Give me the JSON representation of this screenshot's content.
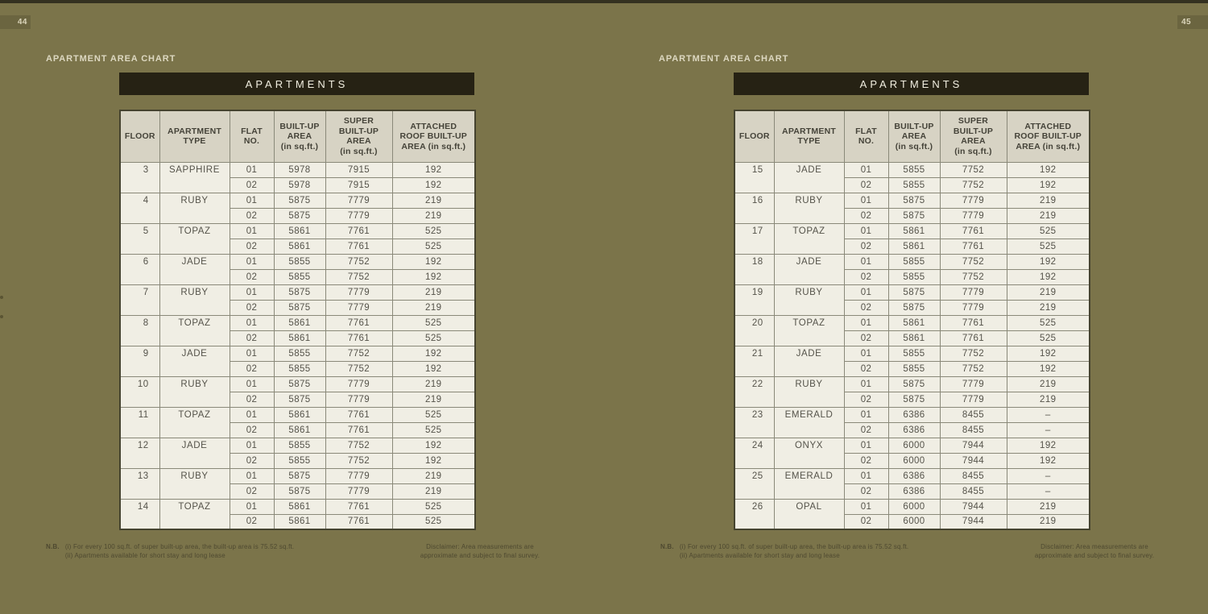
{
  "colors": {
    "page_background": "#7b744a",
    "top_strip": "#343120",
    "band_background": "#262214",
    "band_text": "#f1eee0",
    "header_cell_background": "#d7d3c4",
    "body_cell_background": "#f0eee4",
    "cell_border": "#8a8979",
    "cell_text": "#55534a",
    "badge_background": "#6b6540",
    "light_text": "#ddd8c1",
    "footnote_text": "#4e4930"
  },
  "pages": [
    {
      "page_number": "44",
      "section_label": "APARTMENT AREA CHART",
      "band_title": "APARTMENTS",
      "columns": [
        "FLOOR",
        "APARTMENT\nTYPE",
        "FLAT\nNO.",
        "BUILT-UP\nAREA\n(in sq.ft.)",
        "SUPER\nBUILT-UP\nAREA\n(in sq.ft.)",
        "ATTACHED\nROOF BUILT-UP\nAREA (in sq.ft.)"
      ],
      "floors": [
        {
          "floor": "3",
          "type": "SAPPHIRE",
          "flats": [
            [
              "01",
              "5978",
              "7915",
              "192"
            ],
            [
              "02",
              "5978",
              "7915",
              "192"
            ]
          ]
        },
        {
          "floor": "4",
          "type": "RUBY",
          "flats": [
            [
              "01",
              "5875",
              "7779",
              "219"
            ],
            [
              "02",
              "5875",
              "7779",
              "219"
            ]
          ]
        },
        {
          "floor": "5",
          "type": "TOPAZ",
          "flats": [
            [
              "01",
              "5861",
              "7761",
              "525"
            ],
            [
              "02",
              "5861",
              "7761",
              "525"
            ]
          ]
        },
        {
          "floor": "6",
          "type": "JADE",
          "flats": [
            [
              "01",
              "5855",
              "7752",
              "192"
            ],
            [
              "02",
              "5855",
              "7752",
              "192"
            ]
          ]
        },
        {
          "floor": "7",
          "type": "RUBY",
          "flats": [
            [
              "01",
              "5875",
              "7779",
              "219"
            ],
            [
              "02",
              "5875",
              "7779",
              "219"
            ]
          ]
        },
        {
          "floor": "8",
          "type": "TOPAZ",
          "flats": [
            [
              "01",
              "5861",
              "7761",
              "525"
            ],
            [
              "02",
              "5861",
              "7761",
              "525"
            ]
          ]
        },
        {
          "floor": "9",
          "type": "JADE",
          "flats": [
            [
              "01",
              "5855",
              "7752",
              "192"
            ],
            [
              "02",
              "5855",
              "7752",
              "192"
            ]
          ]
        },
        {
          "floor": "10",
          "type": "RUBY",
          "flats": [
            [
              "01",
              "5875",
              "7779",
              "219"
            ],
            [
              "02",
              "5875",
              "7779",
              "219"
            ]
          ]
        },
        {
          "floor": "11",
          "type": "TOPAZ",
          "flats": [
            [
              "01",
              "5861",
              "7761",
              "525"
            ],
            [
              "02",
              "5861",
              "7761",
              "525"
            ]
          ]
        },
        {
          "floor": "12",
          "type": "JADE",
          "flats": [
            [
              "01",
              "5855",
              "7752",
              "192"
            ],
            [
              "02",
              "5855",
              "7752",
              "192"
            ]
          ]
        },
        {
          "floor": "13",
          "type": "RUBY",
          "flats": [
            [
              "01",
              "5875",
              "7779",
              "219"
            ],
            [
              "02",
              "5875",
              "7779",
              "219"
            ]
          ]
        },
        {
          "floor": "14",
          "type": "TOPAZ",
          "flats": [
            [
              "01",
              "5861",
              "7761",
              "525"
            ],
            [
              "02",
              "5861",
              "7761",
              "525"
            ]
          ]
        }
      ],
      "footnote_label": "N.B.",
      "footnotes": [
        "(i)  For every 100 sq.ft. of super built-up area, the built-up area is 75.52 sq.ft.",
        "(ii) Apartments available for short stay and long lease"
      ],
      "disclaimer": [
        "Disclaimer: Area measurements are",
        "approximate and subject to final survey."
      ]
    },
    {
      "page_number": "45",
      "section_label": "APARTMENT AREA CHART",
      "band_title": "APARTMENTS",
      "columns": [
        "FLOOR",
        "APARTMENT\nTYPE",
        "FLAT\nNO.",
        "BUILT-UP\nAREA\n(in sq.ft.)",
        "SUPER\nBUILT-UP\nAREA\n(in sq.ft.)",
        "ATTACHED\nROOF BUILT-UP\nAREA (in sq.ft.)"
      ],
      "floors": [
        {
          "floor": "15",
          "type": "JADE",
          "flats": [
            [
              "01",
              "5855",
              "7752",
              "192"
            ],
            [
              "02",
              "5855",
              "7752",
              "192"
            ]
          ]
        },
        {
          "floor": "16",
          "type": "RUBY",
          "flats": [
            [
              "01",
              "5875",
              "7779",
              "219"
            ],
            [
              "02",
              "5875",
              "7779",
              "219"
            ]
          ]
        },
        {
          "floor": "17",
          "type": "TOPAZ",
          "flats": [
            [
              "01",
              "5861",
              "7761",
              "525"
            ],
            [
              "02",
              "5861",
              "7761",
              "525"
            ]
          ]
        },
        {
          "floor": "18",
          "type": "JADE",
          "flats": [
            [
              "01",
              "5855",
              "7752",
              "192"
            ],
            [
              "02",
              "5855",
              "7752",
              "192"
            ]
          ]
        },
        {
          "floor": "19",
          "type": "RUBY",
          "flats": [
            [
              "01",
              "5875",
              "7779",
              "219"
            ],
            [
              "02",
              "5875",
              "7779",
              "219"
            ]
          ]
        },
        {
          "floor": "20",
          "type": "TOPAZ",
          "flats": [
            [
              "01",
              "5861",
              "7761",
              "525"
            ],
            [
              "02",
              "5861",
              "7761",
              "525"
            ]
          ]
        },
        {
          "floor": "21",
          "type": "JADE",
          "flats": [
            [
              "01",
              "5855",
              "7752",
              "192"
            ],
            [
              "02",
              "5855",
              "7752",
              "192"
            ]
          ]
        },
        {
          "floor": "22",
          "type": "RUBY",
          "flats": [
            [
              "01",
              "5875",
              "7779",
              "219"
            ],
            [
              "02",
              "5875",
              "7779",
              "219"
            ]
          ]
        },
        {
          "floor": "23",
          "type": "EMERALD",
          "flats": [
            [
              "01",
              "6386",
              "8455",
              "–"
            ],
            [
              "02",
              "6386",
              "8455",
              "–"
            ]
          ]
        },
        {
          "floor": "24",
          "type": "ONYX",
          "flats": [
            [
              "01",
              "6000",
              "7944",
              "192"
            ],
            [
              "02",
              "6000",
              "7944",
              "192"
            ]
          ]
        },
        {
          "floor": "25",
          "type": "EMERALD",
          "flats": [
            [
              "01",
              "6386",
              "8455",
              "–"
            ],
            [
              "02",
              "6386",
              "8455",
              "–"
            ]
          ]
        },
        {
          "floor": "26",
          "type": "OPAL",
          "flats": [
            [
              "01",
              "6000",
              "7944",
              "219"
            ],
            [
              "02",
              "6000",
              "7944",
              "219"
            ]
          ]
        }
      ],
      "footnote_label": "N.B.",
      "footnotes": [
        "(i)  For every 100 sq.ft. of super built-up area, the built-up area is 75.52 sq.ft.",
        "(ii) Apartments available for short stay and long lease"
      ],
      "disclaimer": [
        "Disclaimer: Area measurements are",
        "approximate and subject to final survey."
      ]
    }
  ]
}
